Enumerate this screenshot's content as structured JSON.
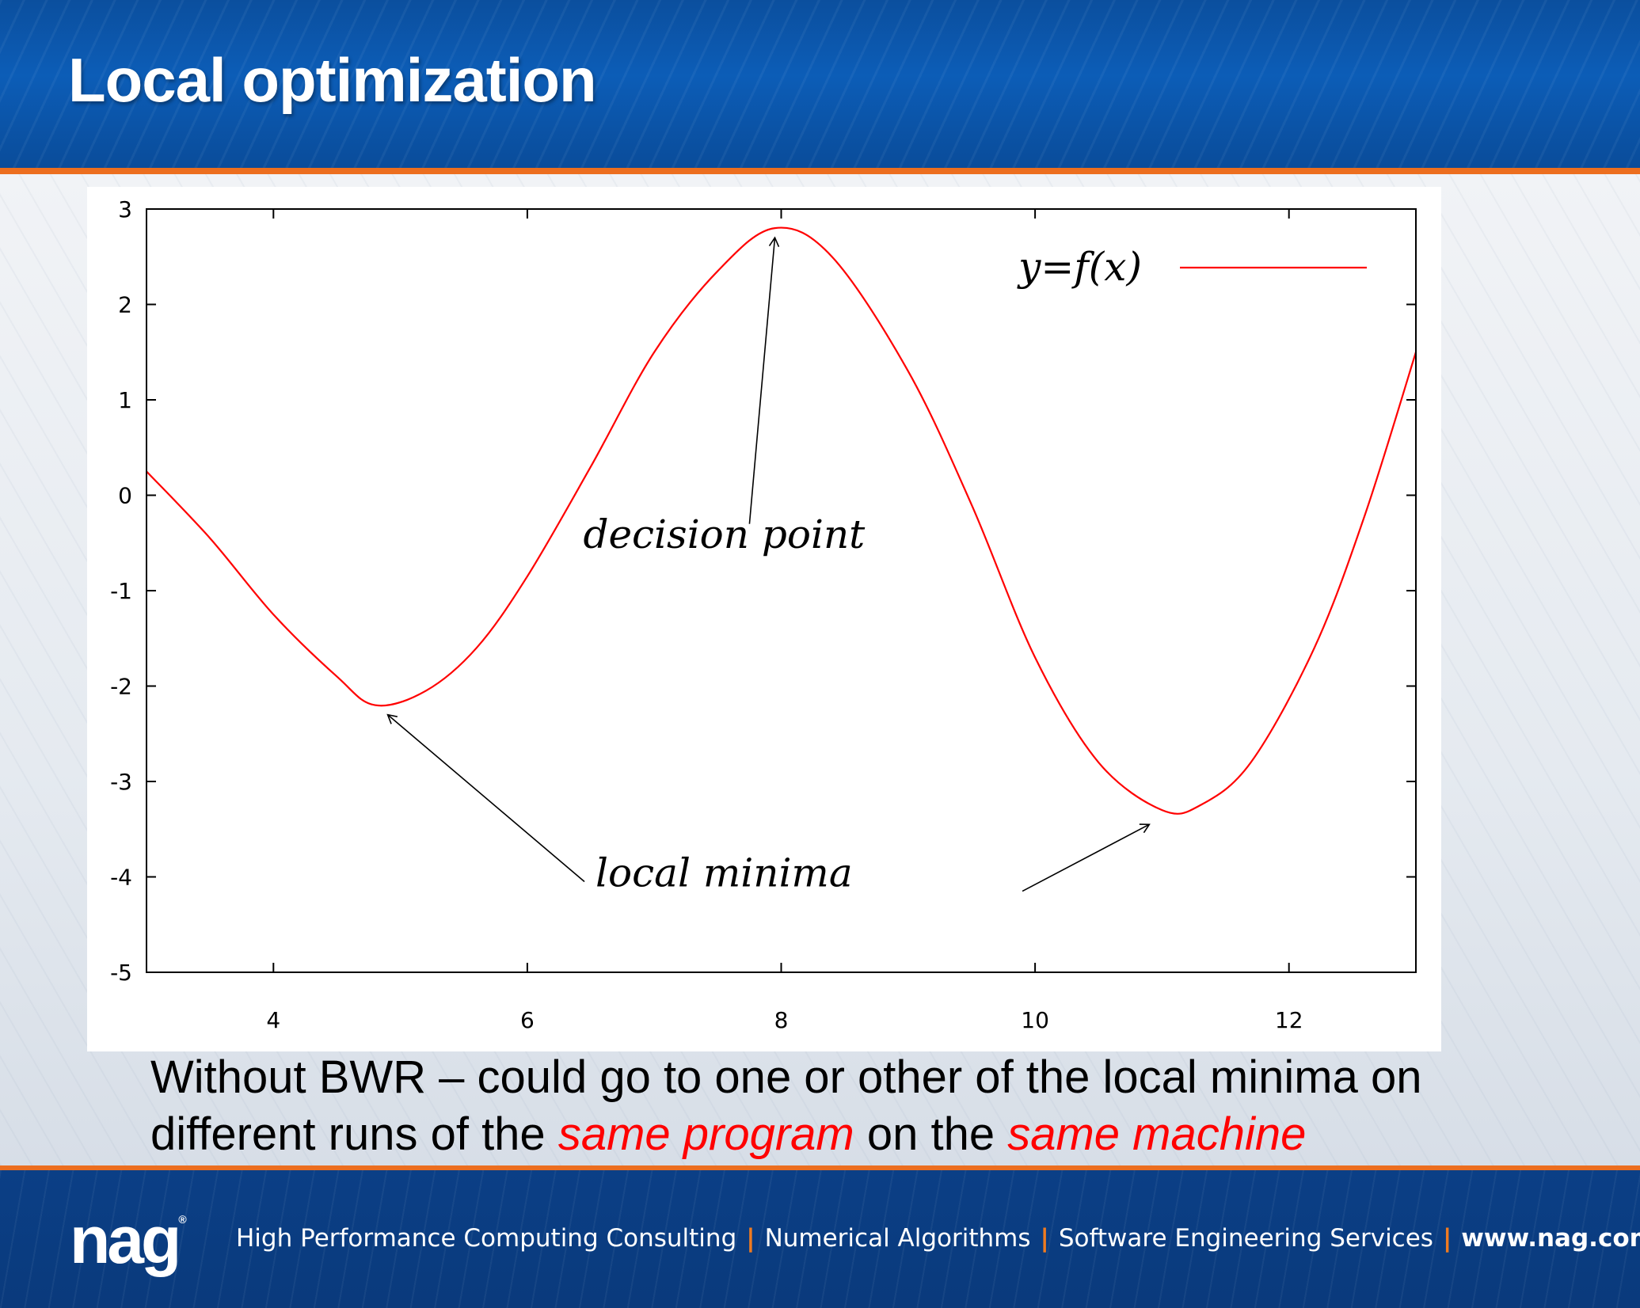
{
  "slide": {
    "title": "Local optimization"
  },
  "caption": {
    "line1": "Without BWR – could go to one or other of the local minima on",
    "line2_prefix": "different runs of the ",
    "highlight1": "same program",
    "line2_middle": " on the ",
    "highlight2": "same machine",
    "highlight_color": "#ff0000"
  },
  "footer": {
    "logo": "nag",
    "logo_mark": "®",
    "items": [
      "High Performance Computing  Consulting",
      "Numerical Algorithms",
      "Software Engineering Services"
    ],
    "url": "www.nag.com",
    "separator_color": "#f07b20"
  },
  "chart_data": {
    "type": "line",
    "xlim": [
      3,
      13
    ],
    "ylim": [
      -5,
      3
    ],
    "x_ticks": [
      4,
      6,
      8,
      10,
      12
    ],
    "y_ticks": [
      3,
      2,
      1,
      0,
      -1,
      -2,
      -3,
      -4,
      -5
    ],
    "series": [
      {
        "name": "y=f(x)",
        "color": "#ff0000",
        "points": [
          [
            3.0,
            0.25
          ],
          [
            3.5,
            -0.45
          ],
          [
            4.0,
            -1.25
          ],
          [
            4.5,
            -1.9
          ],
          [
            4.8,
            -2.2
          ],
          [
            5.2,
            -2.05
          ],
          [
            5.6,
            -1.6
          ],
          [
            6.0,
            -0.85
          ],
          [
            6.5,
            0.3
          ],
          [
            7.0,
            1.5
          ],
          [
            7.5,
            2.35
          ],
          [
            7.95,
            2.8
          ],
          [
            8.4,
            2.5
          ],
          [
            9.0,
            1.3
          ],
          [
            9.5,
            -0.1
          ],
          [
            10.0,
            -1.7
          ],
          [
            10.5,
            -2.8
          ],
          [
            11.0,
            -3.3
          ],
          [
            11.3,
            -3.25
          ],
          [
            11.7,
            -2.8
          ],
          [
            12.2,
            -1.6
          ],
          [
            12.6,
            -0.2
          ],
          [
            13.0,
            1.5
          ]
        ]
      }
    ],
    "legend_position": "top-right",
    "annotations": [
      {
        "text": "decision point",
        "label_at": [
          7.55,
          -0.55
        ],
        "arrow_from": [
          7.75,
          -0.3
        ],
        "arrow_to": [
          7.95,
          2.7
        ]
      },
      {
        "text": "local minima",
        "label_at": [
          7.55,
          -4.1
        ],
        "arrow_from": [
          6.45,
          -4.05
        ],
        "arrow_to": [
          4.9,
          -2.3
        ]
      },
      {
        "text": "",
        "label_at": null,
        "arrow_from": [
          9.9,
          -4.15
        ],
        "arrow_to": [
          10.9,
          -3.45
        ]
      }
    ]
  }
}
